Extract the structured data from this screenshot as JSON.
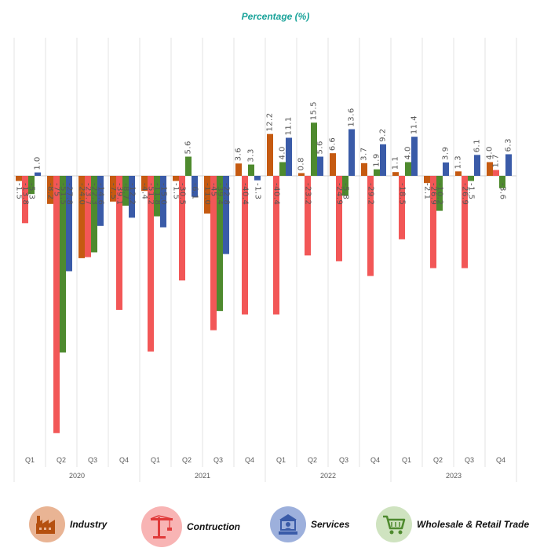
{
  "chart_data": {
    "type": "bar",
    "title": "Percentage (%)",
    "quarters": [
      "Q1",
      "Q2",
      "Q3",
      "Q4",
      "Q1",
      "Q2",
      "Q3",
      "Q4",
      "Q1",
      "Q2",
      "Q3",
      "Q4",
      "Q1",
      "Q2",
      "Q3",
      "Q4"
    ],
    "years": [
      "2020",
      "2021",
      "2022",
      "2023"
    ],
    "ylim": [
      -75,
      16
    ],
    "grid": "vertical separators",
    "series": [
      {
        "name": "Industry",
        "color": "#c55a11",
        "values": [
          -1.5,
          -8.2,
          -24.0,
          -7.5,
          -4.4,
          -1.5,
          -11.0,
          3.6,
          12.2,
          0.8,
          6.6,
          3.7,
          1.1,
          -2.1,
          1.3,
          4.0
        ],
        "labels": [
          "-1.5",
          "-8.2",
          "-24.0",
          "-7.5",
          "-4.4",
          "-1.5",
          "-11.0",
          "3.6",
          "12.2",
          "0.8",
          "6.6",
          "3.7",
          "1.1",
          "-2.1",
          "1.3",
          "4.0"
        ]
      },
      {
        "name": "Contruction",
        "color": "#f25757",
        "values": [
          -13.8,
          -75,
          -23.7,
          -39.1,
          -51.2,
          -30.5,
          -45,
          -40.4,
          -40.4,
          -23.2,
          -24.9,
          -29.2,
          -18.5,
          -26.9,
          -26.9,
          1.7
        ],
        "labels": [
          "-13.8",
          "-75",
          "-23.7",
          "-39.1",
          "-51.2",
          "-30.5",
          "-45",
          "-40.4",
          "-40.4",
          "-23.2",
          "-24.9",
          "-29.2",
          "-18.5",
          "-26.9",
          "-26.9",
          "1.7"
        ]
      },
      {
        "name": "Wholesale & Retail Trade",
        "color": "#4e8a2e",
        "values": [
          -5.3,
          -51.5,
          -22.3,
          -8.7,
          -11.8,
          5.6,
          -39.4,
          3.3,
          4.0,
          15.5,
          -5.8,
          1.9,
          4.0,
          -10.2,
          -1.5,
          -3.6
        ],
        "labels": [
          "-5.3",
          "-51.5",
          "-22.3",
          "-8.7",
          "-11.8",
          "5.6",
          "-39.4",
          "3.3",
          "4.0",
          "15.5",
          "-5.8",
          "1.9",
          "4.0",
          "-10.2",
          "-1.5",
          "-3.6"
        ]
      },
      {
        "name": "Services",
        "color": "#3a5ba8",
        "values": [
          1.0,
          -27.8,
          -14.6,
          -12.2,
          -15.0,
          -6.1,
          -22.8,
          -1.3,
          11.1,
          5.6,
          13.6,
          9.2,
          11.4,
          3.9,
          6.1,
          6.3
        ],
        "labels": [
          "1.0",
          "-27.8",
          "-14.6",
          "-12.2",
          "-15.0",
          "-6.1",
          "-22.8",
          "-1.3",
          "11.1",
          "5.6",
          "13.6",
          "9.2",
          "11.4",
          "3.9",
          "6.1",
          "6.3"
        ]
      }
    ]
  },
  "legend": [
    {
      "label": "Industry",
      "icon": "factory-icon",
      "bg": "#e9b494",
      "fg": "#b5500f"
    },
    {
      "label": "Contruction",
      "icon": "crane-icon",
      "bg": "#f8b4b4",
      "fg": "#e03a3a"
    },
    {
      "label": "Services",
      "icon": "service-desk-icon",
      "bg": "#9db0dc",
      "fg": "#3a5ba8"
    },
    {
      "label": "Wholesale & Retail Trade",
      "icon": "cart-icon",
      "bg": "#cfe3c0",
      "fg": "#4e8a2e"
    }
  ]
}
